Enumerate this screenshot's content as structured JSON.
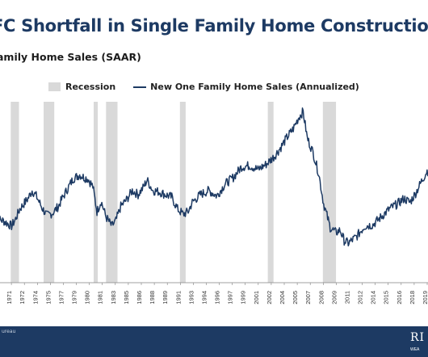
{
  "title": "FC Shortfall in Single Family Home Constructio",
  "subtitle": "amily Home Sales (SAAR)",
  "legend": {
    "recession_label": "Recession",
    "series_label": "New One Family Home Sales (Annualized)"
  },
  "footer": {
    "source": "ureau",
    "logo_text": "RI",
    "logo_sub": "WEA"
  },
  "colors": {
    "line": "#1d3a63",
    "recession": "#d9d9d9",
    "footer": "#1d3a63",
    "title": "#1d3a63"
  },
  "chart_data": {
    "type": "line",
    "x_tick_labels": [
      "1968",
      "1971",
      "1972",
      "1974",
      "1975",
      "1977",
      "1979",
      "1980",
      "1981",
      "1983",
      "1985",
      "1986",
      "1988",
      "1989",
      "1991",
      "1993",
      "1994",
      "1996",
      "1997",
      "1999",
      "2001",
      "2002",
      "2004",
      "2005",
      "2007",
      "2008",
      "2009",
      "2011",
      "2012",
      "2014",
      "2015",
      "2016",
      "2018",
      "2019"
    ],
    "x_range": [
      1968,
      2021
    ],
    "recessions": [
      [
        1969.9,
        1970.9
      ],
      [
        1973.9,
        1975.2
      ],
      [
        1980.0,
        1980.5
      ],
      [
        1981.5,
        1982.9
      ],
      [
        1990.5,
        1991.2
      ],
      [
        2001.2,
        2001.9
      ],
      [
        2007.9,
        2009.5
      ]
    ],
    "series": [
      {
        "name": "New One Family Home Sales (Annualized)",
        "points": [
          [
            1968.0,
            490
          ],
          [
            1969.0,
            470
          ],
          [
            1970.0,
            430
          ],
          [
            1970.5,
            485
          ],
          [
            1971.0,
            560
          ],
          [
            1972.0,
            640
          ],
          [
            1972.5,
            700
          ],
          [
            1973.0,
            660
          ],
          [
            1973.7,
            570
          ],
          [
            1974.3,
            510
          ],
          [
            1975.0,
            530
          ],
          [
            1975.7,
            580
          ],
          [
            1976.0,
            620
          ],
          [
            1976.7,
            700
          ],
          [
            1977.5,
            790
          ],
          [
            1978.3,
            820
          ],
          [
            1978.8,
            800
          ],
          [
            1979.3,
            790
          ],
          [
            1979.9,
            730
          ],
          [
            1980.4,
            540
          ],
          [
            1980.9,
            620
          ],
          [
            1981.5,
            500
          ],
          [
            1982.2,
            430
          ],
          [
            1982.7,
            470
          ],
          [
            1983.3,
            580
          ],
          [
            1984.0,
            630
          ],
          [
            1984.7,
            700
          ],
          [
            1985.4,
            670
          ],
          [
            1986.0,
            720
          ],
          [
            1986.5,
            780
          ],
          [
            1987.2,
            700
          ],
          [
            1988.0,
            690
          ],
          [
            1988.7,
            670
          ],
          [
            1989.5,
            650
          ],
          [
            1990.2,
            560
          ],
          [
            1990.9,
            520
          ],
          [
            1991.5,
            540
          ],
          [
            1992.0,
            610
          ],
          [
            1993.0,
            670
          ],
          [
            1994.0,
            700
          ],
          [
            1995.0,
            660
          ],
          [
            1996.0,
            750
          ],
          [
            1997.0,
            800
          ],
          [
            1998.0,
            880
          ],
          [
            1999.0,
            890
          ],
          [
            2000.0,
            860
          ],
          [
            2001.0,
            900
          ],
          [
            2002.0,
            960
          ],
          [
            2002.8,
            1030
          ],
          [
            2003.5,
            1100
          ],
          [
            2004.3,
            1170
          ],
          [
            2005.0,
            1260
          ],
          [
            2005.5,
            1300
          ],
          [
            2006.0,
            1100
          ],
          [
            2006.7,
            990
          ],
          [
            2007.4,
            830
          ],
          [
            2008.0,
            600
          ],
          [
            2008.8,
            420
          ],
          [
            2009.5,
            380
          ],
          [
            2010.0,
            400
          ],
          [
            2010.5,
            320
          ],
          [
            2011.0,
            300
          ],
          [
            2012.0,
            350
          ],
          [
            2013.0,
            430
          ],
          [
            2014.0,
            440
          ],
          [
            2015.0,
            500
          ],
          [
            2016.0,
            560
          ],
          [
            2017.0,
            600
          ],
          [
            2017.8,
            640
          ],
          [
            2018.5,
            610
          ],
          [
            2019.2,
            680
          ],
          [
            2020.0,
            780
          ],
          [
            2020.6,
            850
          ],
          [
            2021.0,
            840
          ]
        ]
      }
    ],
    "grid": false
  }
}
